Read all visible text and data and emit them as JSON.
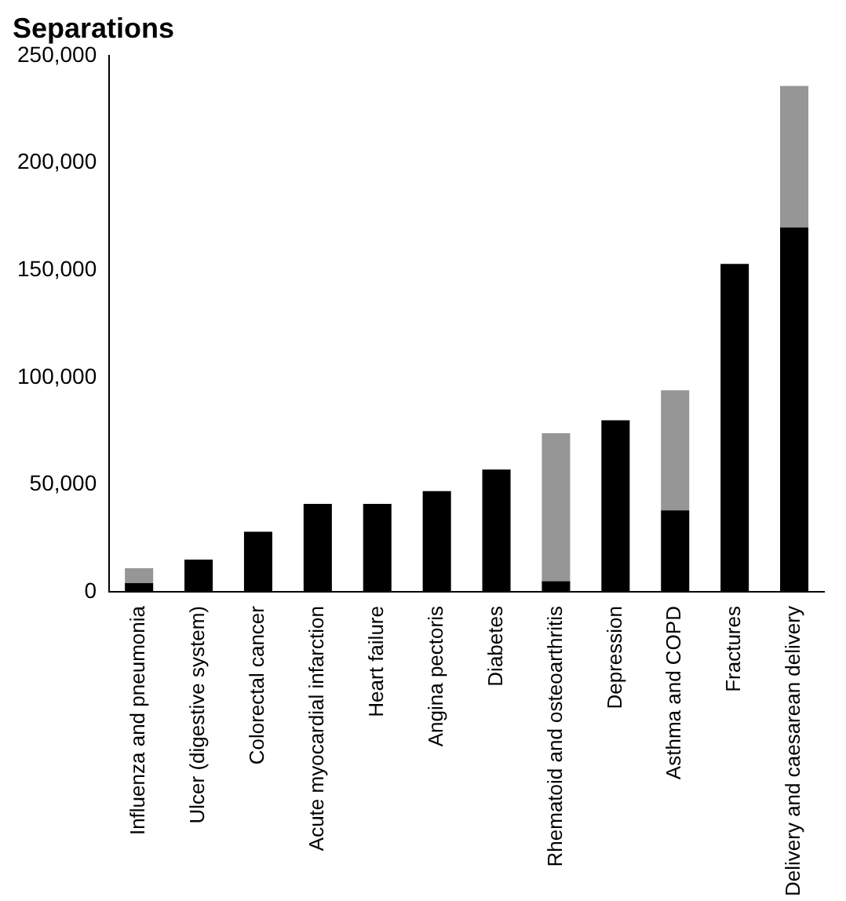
{
  "chart_data": {
    "type": "bar",
    "title": "Separations",
    "stacked": true,
    "categories": [
      "Influenza and pneumonia",
      "Ulcer (digestive system)",
      "Colorectal cancer",
      "Acute myocardial infarction",
      "Heart failure",
      "Angina pectoris",
      "Diabetes",
      "Rhematoid and osteoarthritis",
      "Depression",
      "Asthma and COPD",
      "Fractures",
      "Delivery and caesarean delivery"
    ],
    "series": [
      {
        "color": "#000000",
        "values": [
          4000,
          15000,
          28000,
          41000,
          41000,
          47000,
          57000,
          5000,
          80000,
          38000,
          153000,
          170000
        ]
      },
      {
        "color": "#969696",
        "values": [
          7000,
          null,
          null,
          null,
          null,
          null,
          null,
          69000,
          null,
          56000,
          null,
          66000
        ]
      }
    ],
    "ylim": [
      0,
      250000
    ],
    "yticks": [
      {
        "value": 0,
        "label": "0"
      },
      {
        "value": 50000,
        "label": "50,000"
      },
      {
        "value": 100000,
        "label": "100,000"
      },
      {
        "value": 150000,
        "label": "150,000"
      },
      {
        "value": 200000,
        "label": "200,000"
      },
      {
        "value": 250000,
        "label": "250,000"
      }
    ],
    "grid": false,
    "legend": false
  }
}
